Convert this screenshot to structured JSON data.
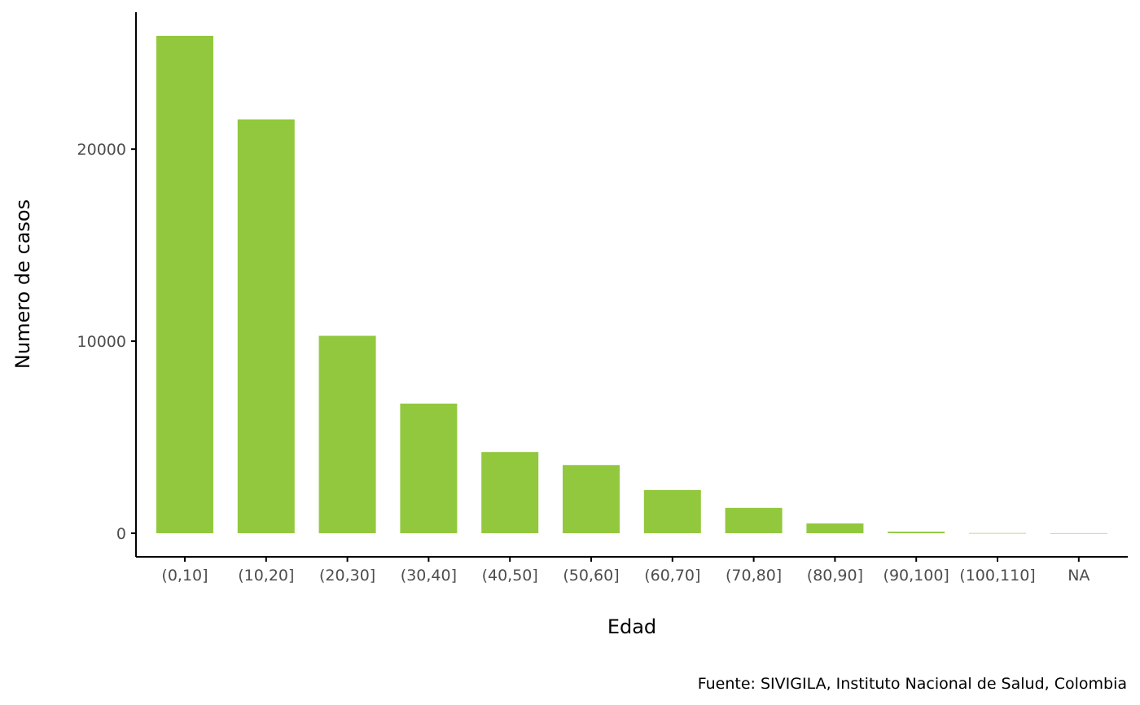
{
  "chart_data": {
    "type": "bar",
    "categories": [
      "(0,10]",
      "(10,20]",
      "(20,30]",
      "(30,40]",
      "(40,50]",
      "(50,60]",
      "(60,70]",
      "(70,80]",
      "(80,90]",
      "(90,100]",
      "(100,110]",
      "NA"
    ],
    "values": [
      25900,
      21550,
      10280,
      6750,
      4230,
      3550,
      2250,
      1320,
      510,
      80,
      8,
      3
    ],
    "xlabel": "Edad",
    "ylabel": "Numero de casos",
    "caption": "Fuente: SIVIGILA, Instituto Nacional de Salud, Colombia",
    "yticks": [
      0,
      10000,
      20000
    ],
    "ylim": [
      -1230,
      27130
    ],
    "bar_color": "#92c83e",
    "grid": false,
    "legend": "none"
  }
}
